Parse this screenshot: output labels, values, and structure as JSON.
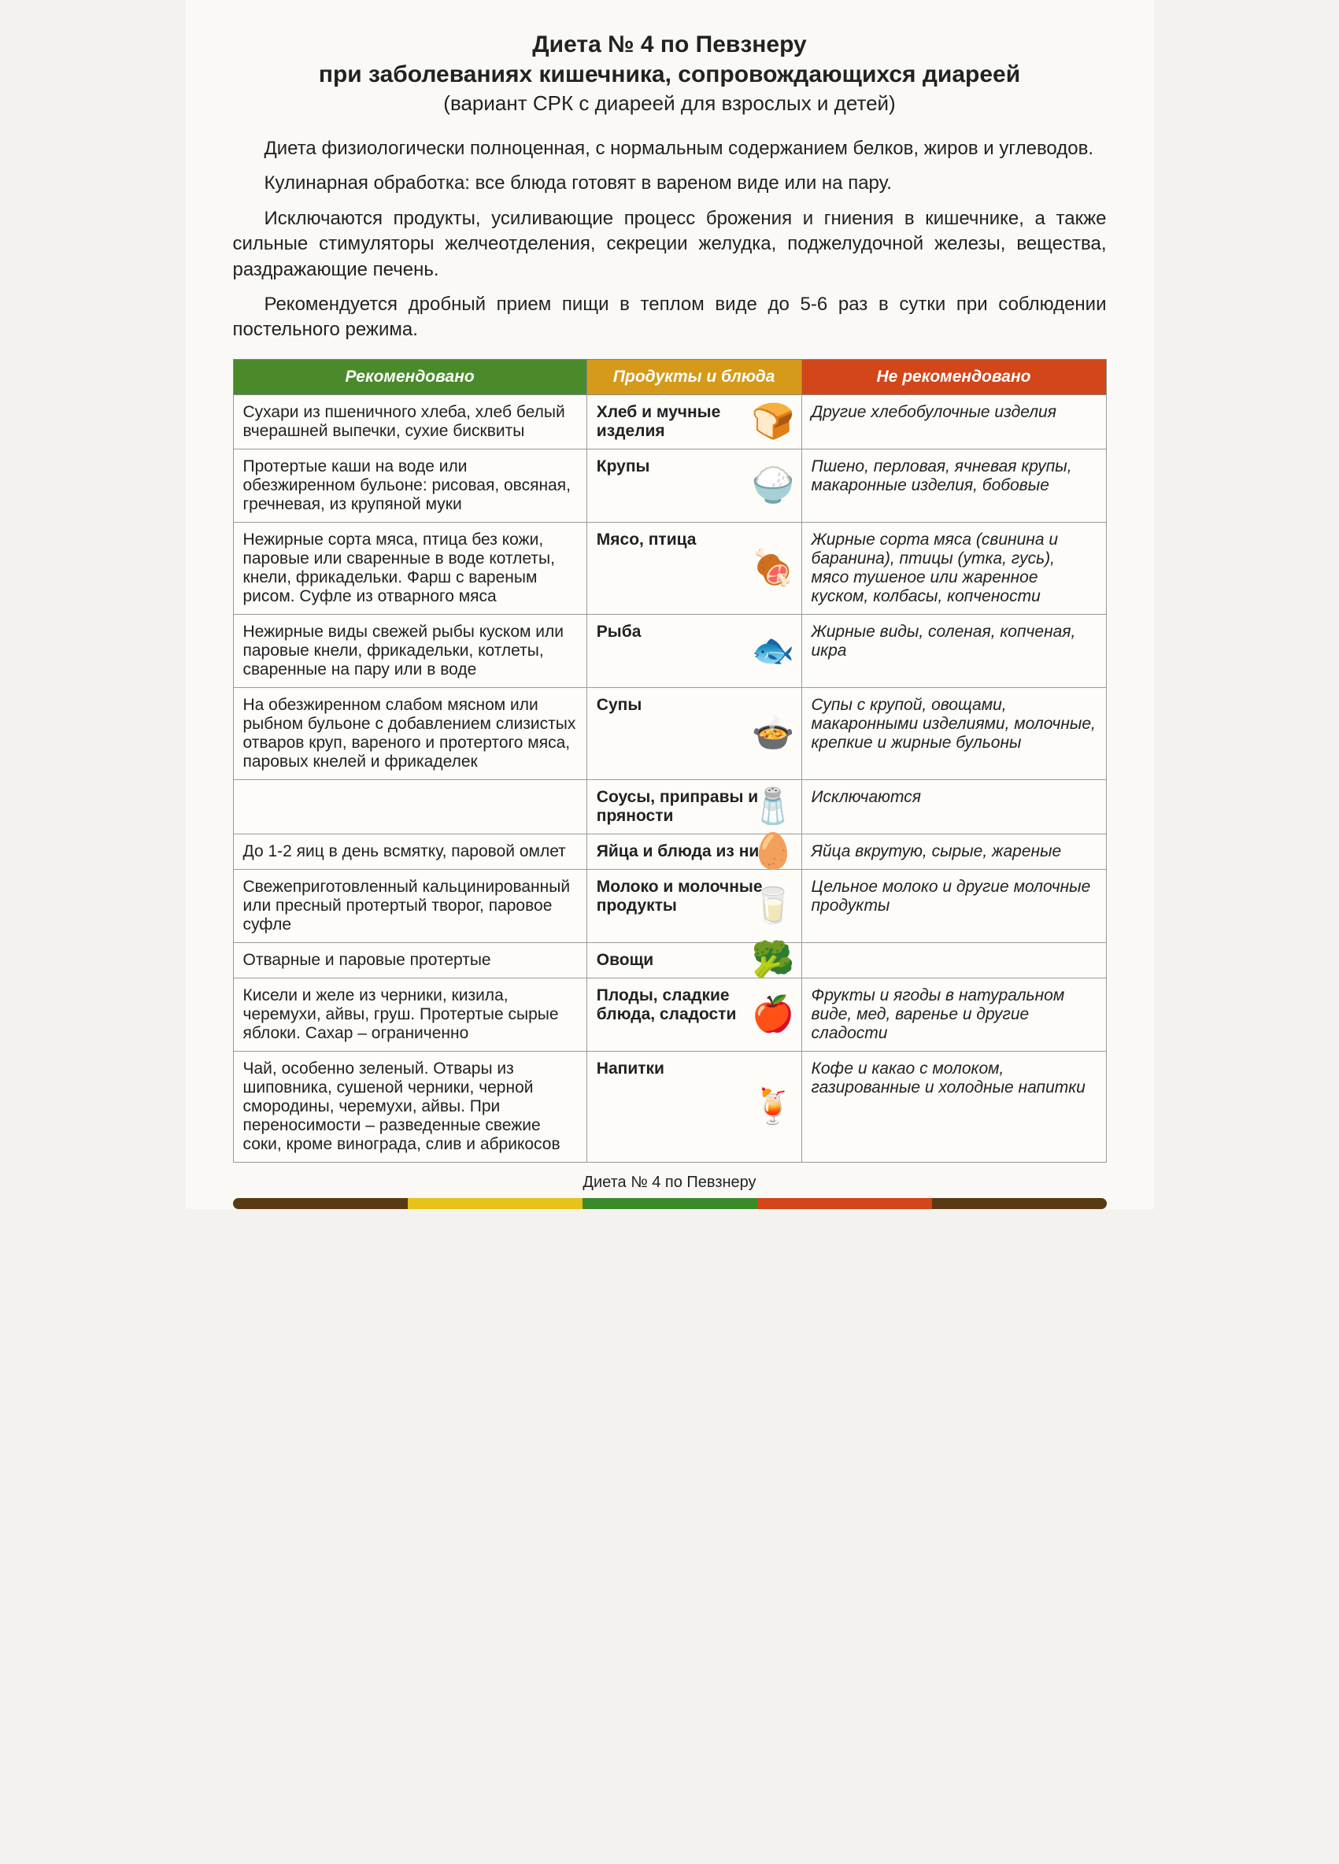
{
  "header": {
    "title": "Диета № 4 по Певзнеру",
    "subtitle": "при заболеваниях кишечника, сопровождающихся диареей",
    "caption": "(вариант СРК с диареей для взрослых и детей)"
  },
  "paragraphs": [
    "Диета физиологически полноценная, с нормальным содержанием белков, жиров и углеводов.",
    "Кулинарная обработка: все блюда готовят в вареном виде или на пару.",
    "Исключаются продукты, усиливающие процесс брожения и гниения в кишечнике, а также сильные стимуляторы желчеотделения, секреции желудка, поджелудочной железы, вещества, раздражающие печень.",
    "Рекомендуется дробный прием пищи в теплом виде до 5-6 раз в сутки при соблюдении постельного режима."
  ],
  "table": {
    "headers": {
      "recommended": "Рекомендовано",
      "category": "Продукты и блюда",
      "not_recommended": "Не рекомендовано"
    },
    "header_colors": {
      "recommended": "#4a8a2a",
      "category": "#d59a1a",
      "not_recommended": "#d2461a"
    },
    "rows": [
      {
        "rec": "Сухари из пшеничного хлеба, хлеб белый вчерашней выпечки, сухие бисквиты",
        "cat": "Хлеб и мучные изделия",
        "icon": "🍞",
        "not": "Другие хлебобулочные изделия"
      },
      {
        "rec": "Протертые каши на воде или обезжиренном бульоне: рисовая, овсяная, гречневая, из крупяной муки",
        "cat": "Крупы",
        "icon": "🍚",
        "not": "Пшено, перловая, ячневая крупы, макаронные изделия, бобовые"
      },
      {
        "rec": "Нежирные сорта мяса, птица без кожи, паровые или сваренные в воде котлеты, кнели, фрикадельки. Фарш с вареным рисом. Суфле из отварного мяса",
        "cat": "Мясо, птица",
        "icon": "🍖",
        "not": "Жирные сорта мяса (свинина и баранина), птицы (утка, гусь), мясо тушеное или жаренное куском, колбасы, копчености"
      },
      {
        "rec": "Нежирные виды свежей рыбы куском или паровые кнели, фрикадельки, котлеты, сваренные на пару или в воде",
        "cat": "Рыба",
        "icon": "🐟",
        "not": "Жирные виды, соленая, копченая, икра"
      },
      {
        "rec": "На обезжиренном слабом мясном или рыбном бульоне с добавлением слизистых отваров круп, вареного и протертого мяса, паровых кнелей и фрикаделек",
        "cat": "Супы",
        "icon": "🍲",
        "not": "Супы с крупой, овощами, макаронными изделиями, молочные, крепкие и жирные бульоны"
      },
      {
        "rec": "",
        "cat": "Соусы, приправы и пряности",
        "icon": "🧂",
        "not": "Исключаются"
      },
      {
        "rec": "До 1-2 яиц в день всмятку, паровой омлет",
        "cat": "Яйца и блюда из них",
        "icon": "🥚",
        "not": "Яйца вкрутую, сырые, жареные"
      },
      {
        "rec": "Свежеприготовленный кальцинированный или пресный протертый творог, паровое суфле",
        "cat": "Молоко и молочные продукты",
        "icon": "🥛",
        "not": "Цельное молоко и другие молочные продукты"
      },
      {
        "rec": "Отварные и паровые протертые",
        "cat": "Овощи",
        "icon": "🥦",
        "not": ""
      },
      {
        "rec": "Кисели и желе из черники, кизила, черемухи, айвы, груш. Протертые сырые яблоки. Сахар – ограниченно",
        "cat": "Плоды, сладкие блюда, сладости",
        "icon": "🍎",
        "not": "Фрукты и ягоды в натуральном виде, мед, варенье и другие сладости"
      },
      {
        "rec": "Чай, особенно зеленый. Отвары из шиповника, сушеной черники, черной смородины, черемухи, айвы. При переносимости – разведенные свежие соки, кроме винограда, слив и абрикосов",
        "cat": "Напитки",
        "icon": "🍹",
        "not": "Кофе и какао с молоком, газированные и холодные напитки"
      }
    ]
  },
  "footer": {
    "label": "Диета № 4 по Певзнеру",
    "stripe_colors": [
      "#5a3a12",
      "#e6c21a",
      "#3a8a2a",
      "#d2461a",
      "#5a3a12"
    ]
  }
}
